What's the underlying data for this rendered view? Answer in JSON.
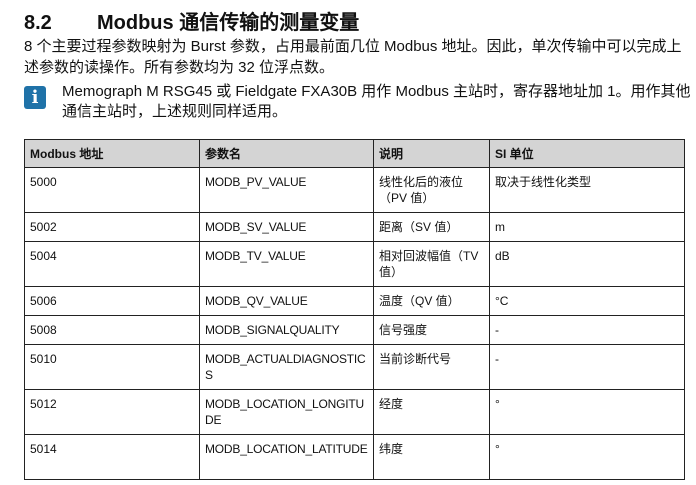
{
  "section": {
    "number": "8.2",
    "title": "Modbus 通信传输的测量变量"
  },
  "paragraph": "8 个主要过程参数映射为 Burst 参数，占用最前面几位 Modbus 地址。因此，单次传输中可以完成上述参数的读操作。所有参数均为 32 位浮点数。",
  "info": {
    "icon": "info-icon",
    "icon_glyph": "i",
    "text": "Memograph M RSG45 或 Fieldgate FXA30B 用作 Modbus 主站时，寄存器地址加 1。用作其他通信主站时，上述规则同样适用。",
    "color": "#1f72a8"
  },
  "table": {
    "headers": [
      "Modbus 地址",
      "参数名",
      "说明",
      "SI 单位"
    ],
    "rows": [
      [
        "5000",
        "MODB_PV_VALUE",
        "线性化后的液位（PV 值）",
        "取决于线性化类型"
      ],
      [
        "5002",
        "MODB_SV_VALUE",
        "距离（SV 值）",
        "m"
      ],
      [
        "5004",
        "MODB_TV_VALUE",
        "相对回波幅值（TV 值）",
        "dB"
      ],
      [
        "5006",
        "MODB_QV_VALUE",
        "温度（QV 值）",
        "°C"
      ],
      [
        "5008",
        "MODB_SIGNALQUALITY",
        "信号强度",
        "-"
      ],
      [
        "5010",
        "MODB_ACTUALDIAGNOSTICS",
        "当前诊断代号",
        "-"
      ],
      [
        "5012",
        "MODB_LOCATION_LONGITUDE",
        "经度",
        "°"
      ],
      [
        "5014",
        "MODB_LOCATION_LATITUDE",
        "纬度",
        "°"
      ]
    ]
  }
}
